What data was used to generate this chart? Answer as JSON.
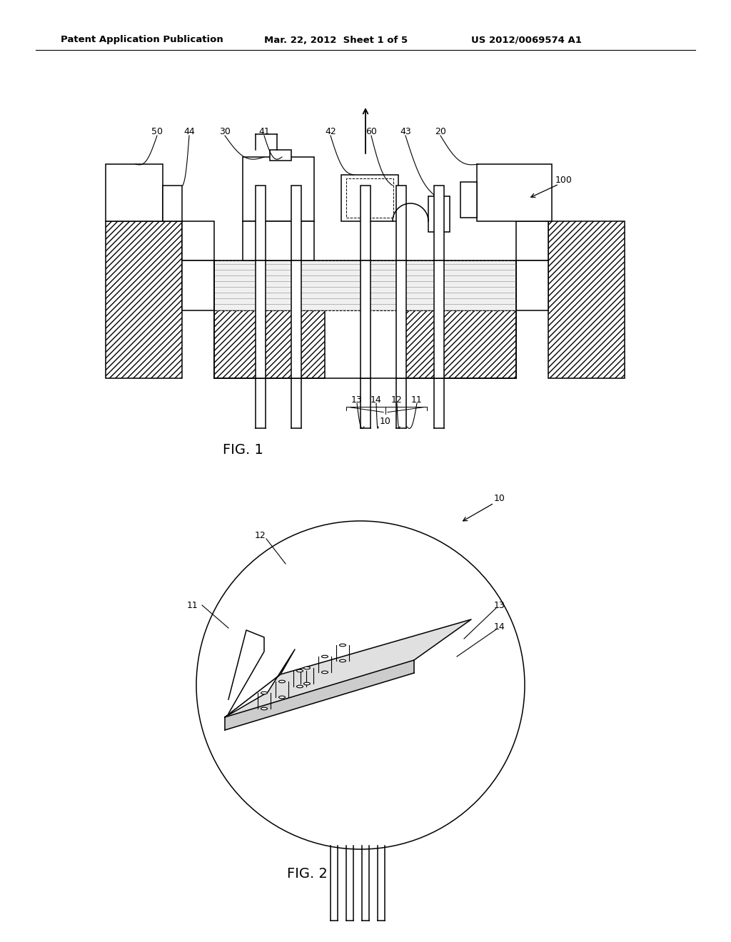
{
  "bg_color": "#ffffff",
  "header_left": "Patent Application Publication",
  "header_mid": "Mar. 22, 2012  Sheet 1 of 5",
  "header_right": "US 2012/0069574 A1",
  "fig1_label": "FIG. 1",
  "fig2_label": "FIG. 2"
}
